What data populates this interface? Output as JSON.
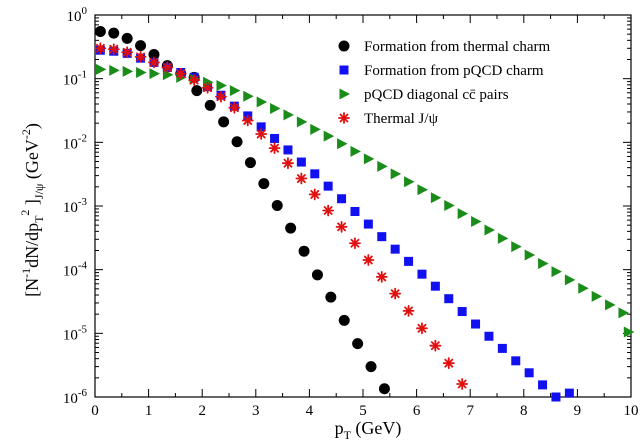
{
  "chart_data": {
    "type": "scatter",
    "xlabel": {
      "main": "p",
      "sub": "T",
      "rest": " (GeV)"
    },
    "ylabel": {
      "p1": "[N",
      "sup1": "-1",
      "p2": "dN/dp",
      "sub1": "T",
      "sup2": "2",
      "p3": " ]",
      "sub2": "J/ψ",
      "p4": " (GeV",
      "sup3": "-2",
      "p5": ")"
    },
    "xlim": [
      0,
      10
    ],
    "ylim_log10": [
      -6,
      0
    ],
    "y_scale": "log",
    "x_ticks": [
      "0",
      "1",
      "2",
      "3",
      "4",
      "5",
      "6",
      "7",
      "8",
      "9",
      "10"
    ],
    "y_ticks": [
      {
        "base": "10",
        "exp": "0"
      },
      {
        "base": "10",
        "exp": "-1"
      },
      {
        "base": "10",
        "exp": "-2"
      },
      {
        "base": "10",
        "exp": "-3"
      },
      {
        "base": "10",
        "exp": "-4"
      },
      {
        "base": "10",
        "exp": "-5"
      },
      {
        "base": "10",
        "exp": "-6"
      }
    ],
    "legend_position": "top-right",
    "series": [
      {
        "name": "Formation from thermal charm",
        "marker": "circle",
        "color": "#000000",
        "points": [
          [
            0.1,
            0.55
          ],
          [
            0.35,
            0.52
          ],
          [
            0.6,
            0.43
          ],
          [
            0.85,
            0.33
          ],
          [
            1.1,
            0.24
          ],
          [
            1.35,
            0.16
          ],
          [
            1.6,
            0.12
          ],
          [
            1.85,
            0.105
          ],
          [
            1.9,
            0.065
          ],
          [
            2.15,
            0.038
          ],
          [
            2.4,
            0.021
          ],
          [
            2.65,
            0.0102
          ],
          [
            2.9,
            0.0048
          ],
          [
            3.15,
            0.00225
          ],
          [
            3.4,
            0.00102
          ],
          [
            3.65,
            0.00045
          ],
          [
            3.9,
            0.000195
          ],
          [
            4.15,
            8.3e-05
          ],
          [
            4.4,
            3.7e-05
          ],
          [
            4.65,
            1.6e-05
          ],
          [
            4.9,
            6.9e-06
          ],
          [
            5.15,
            3e-06
          ],
          [
            5.4,
            1.35e-06
          ]
        ]
      },
      {
        "name": "Formation from pQCD charm",
        "marker": "square",
        "color": "#1010f0",
        "points": [
          [
            0.1,
            0.28
          ],
          [
            0.35,
            0.27
          ],
          [
            0.6,
            0.25
          ],
          [
            0.85,
            0.21
          ],
          [
            1.1,
            0.18
          ],
          [
            1.35,
            0.15
          ],
          [
            1.6,
            0.125
          ],
          [
            1.85,
            0.105
          ],
          [
            2.1,
            0.075
          ],
          [
            2.35,
            0.055
          ],
          [
            2.6,
            0.037
          ],
          [
            2.85,
            0.026
          ],
          [
            3.1,
            0.0175
          ],
          [
            3.35,
            0.0115
          ],
          [
            3.6,
            0.0076
          ],
          [
            3.85,
            0.0049
          ],
          [
            4.1,
            0.0032
          ],
          [
            4.35,
            0.00205
          ],
          [
            4.6,
            0.0013
          ],
          [
            4.85,
            0.00082
          ],
          [
            5.1,
            0.00052
          ],
          [
            5.35,
            0.00033
          ],
          [
            5.6,
            0.00021
          ],
          [
            5.85,
            0.000135
          ],
          [
            6.1,
            8.5e-05
          ],
          [
            6.35,
            5.5e-05
          ],
          [
            6.6,
            3.5e-05
          ],
          [
            6.85,
            2.2e-05
          ],
          [
            7.1,
            1.4e-05
          ],
          [
            7.35,
            9e-06
          ],
          [
            7.6,
            5.8e-06
          ],
          [
            7.85,
            3.7e-06
          ],
          [
            8.1,
            2.4e-06
          ],
          [
            8.35,
            1.55e-06
          ],
          [
            8.6,
            1e-06
          ],
          [
            8.85,
            1.15e-06
          ]
        ]
      },
      {
        "name": "pQCD diagonal cc̄ pairs",
        "marker": "triangle-right",
        "color": "#1a8c1a",
        "points": [
          [
            0.1,
            0.14
          ],
          [
            0.35,
            0.135
          ],
          [
            0.6,
            0.13
          ],
          [
            0.85,
            0.125
          ],
          [
            1.1,
            0.12
          ],
          [
            1.35,
            0.115
          ],
          [
            1.6,
            0.105
          ],
          [
            1.85,
            0.098
          ],
          [
            2.1,
            0.088
          ],
          [
            2.35,
            0.078
          ],
          [
            2.6,
            0.065
          ],
          [
            2.85,
            0.053
          ],
          [
            3.1,
            0.043
          ],
          [
            3.35,
            0.034
          ],
          [
            3.6,
            0.027
          ],
          [
            3.85,
            0.021
          ],
          [
            4.1,
            0.016
          ],
          [
            4.35,
            0.0125
          ],
          [
            4.6,
            0.0095
          ],
          [
            4.85,
            0.0072
          ],
          [
            5.1,
            0.0055
          ],
          [
            5.35,
            0.0042
          ],
          [
            5.6,
            0.0032
          ],
          [
            5.85,
            0.0024
          ],
          [
            6.1,
            0.0018
          ],
          [
            6.35,
            0.00135
          ],
          [
            6.6,
            0.00102
          ],
          [
            6.85,
            0.00076
          ],
          [
            7.1,
            0.00057
          ],
          [
            7.35,
            0.00042
          ],
          [
            7.6,
            0.00031
          ],
          [
            7.85,
            0.00023
          ],
          [
            8.1,
            0.00017
          ],
          [
            8.35,
            0.000125
          ],
          [
            8.6,
            9.3e-05
          ],
          [
            8.85,
            6.9e-05
          ],
          [
            9.1,
            5.1e-05
          ],
          [
            9.35,
            3.8e-05
          ],
          [
            9.6,
            2.8e-05
          ],
          [
            9.85,
            2.1e-05
          ],
          [
            9.95,
            1.05e-05
          ]
        ]
      },
      {
        "name": "Thermal J/ψ",
        "marker": "asterisk",
        "color": "#e01010",
        "points": [
          [
            0.1,
            0.3
          ],
          [
            0.35,
            0.29
          ],
          [
            0.6,
            0.26
          ],
          [
            0.85,
            0.22
          ],
          [
            1.1,
            0.18
          ],
          [
            1.35,
            0.15
          ],
          [
            1.6,
            0.12
          ],
          [
            1.85,
            0.095
          ],
          [
            2.1,
            0.072
          ],
          [
            2.35,
            0.052
          ],
          [
            2.6,
            0.035
          ],
          [
            2.85,
            0.022
          ],
          [
            3.1,
            0.0135
          ],
          [
            3.35,
            0.0081
          ],
          [
            3.6,
            0.0047
          ],
          [
            3.85,
            0.0027
          ],
          [
            4.1,
            0.00152
          ],
          [
            4.35,
            0.00085
          ],
          [
            4.6,
            0.00047
          ],
          [
            4.85,
            0.00026
          ],
          [
            5.1,
            0.000142
          ],
          [
            5.35,
            7.7e-05
          ],
          [
            5.6,
            4.2e-05
          ],
          [
            5.85,
            2.25e-05
          ],
          [
            6.1,
            1.2e-05
          ],
          [
            6.35,
            6.4e-06
          ],
          [
            6.6,
            3.4e-06
          ],
          [
            6.85,
            1.6e-06
          ]
        ]
      }
    ]
  }
}
